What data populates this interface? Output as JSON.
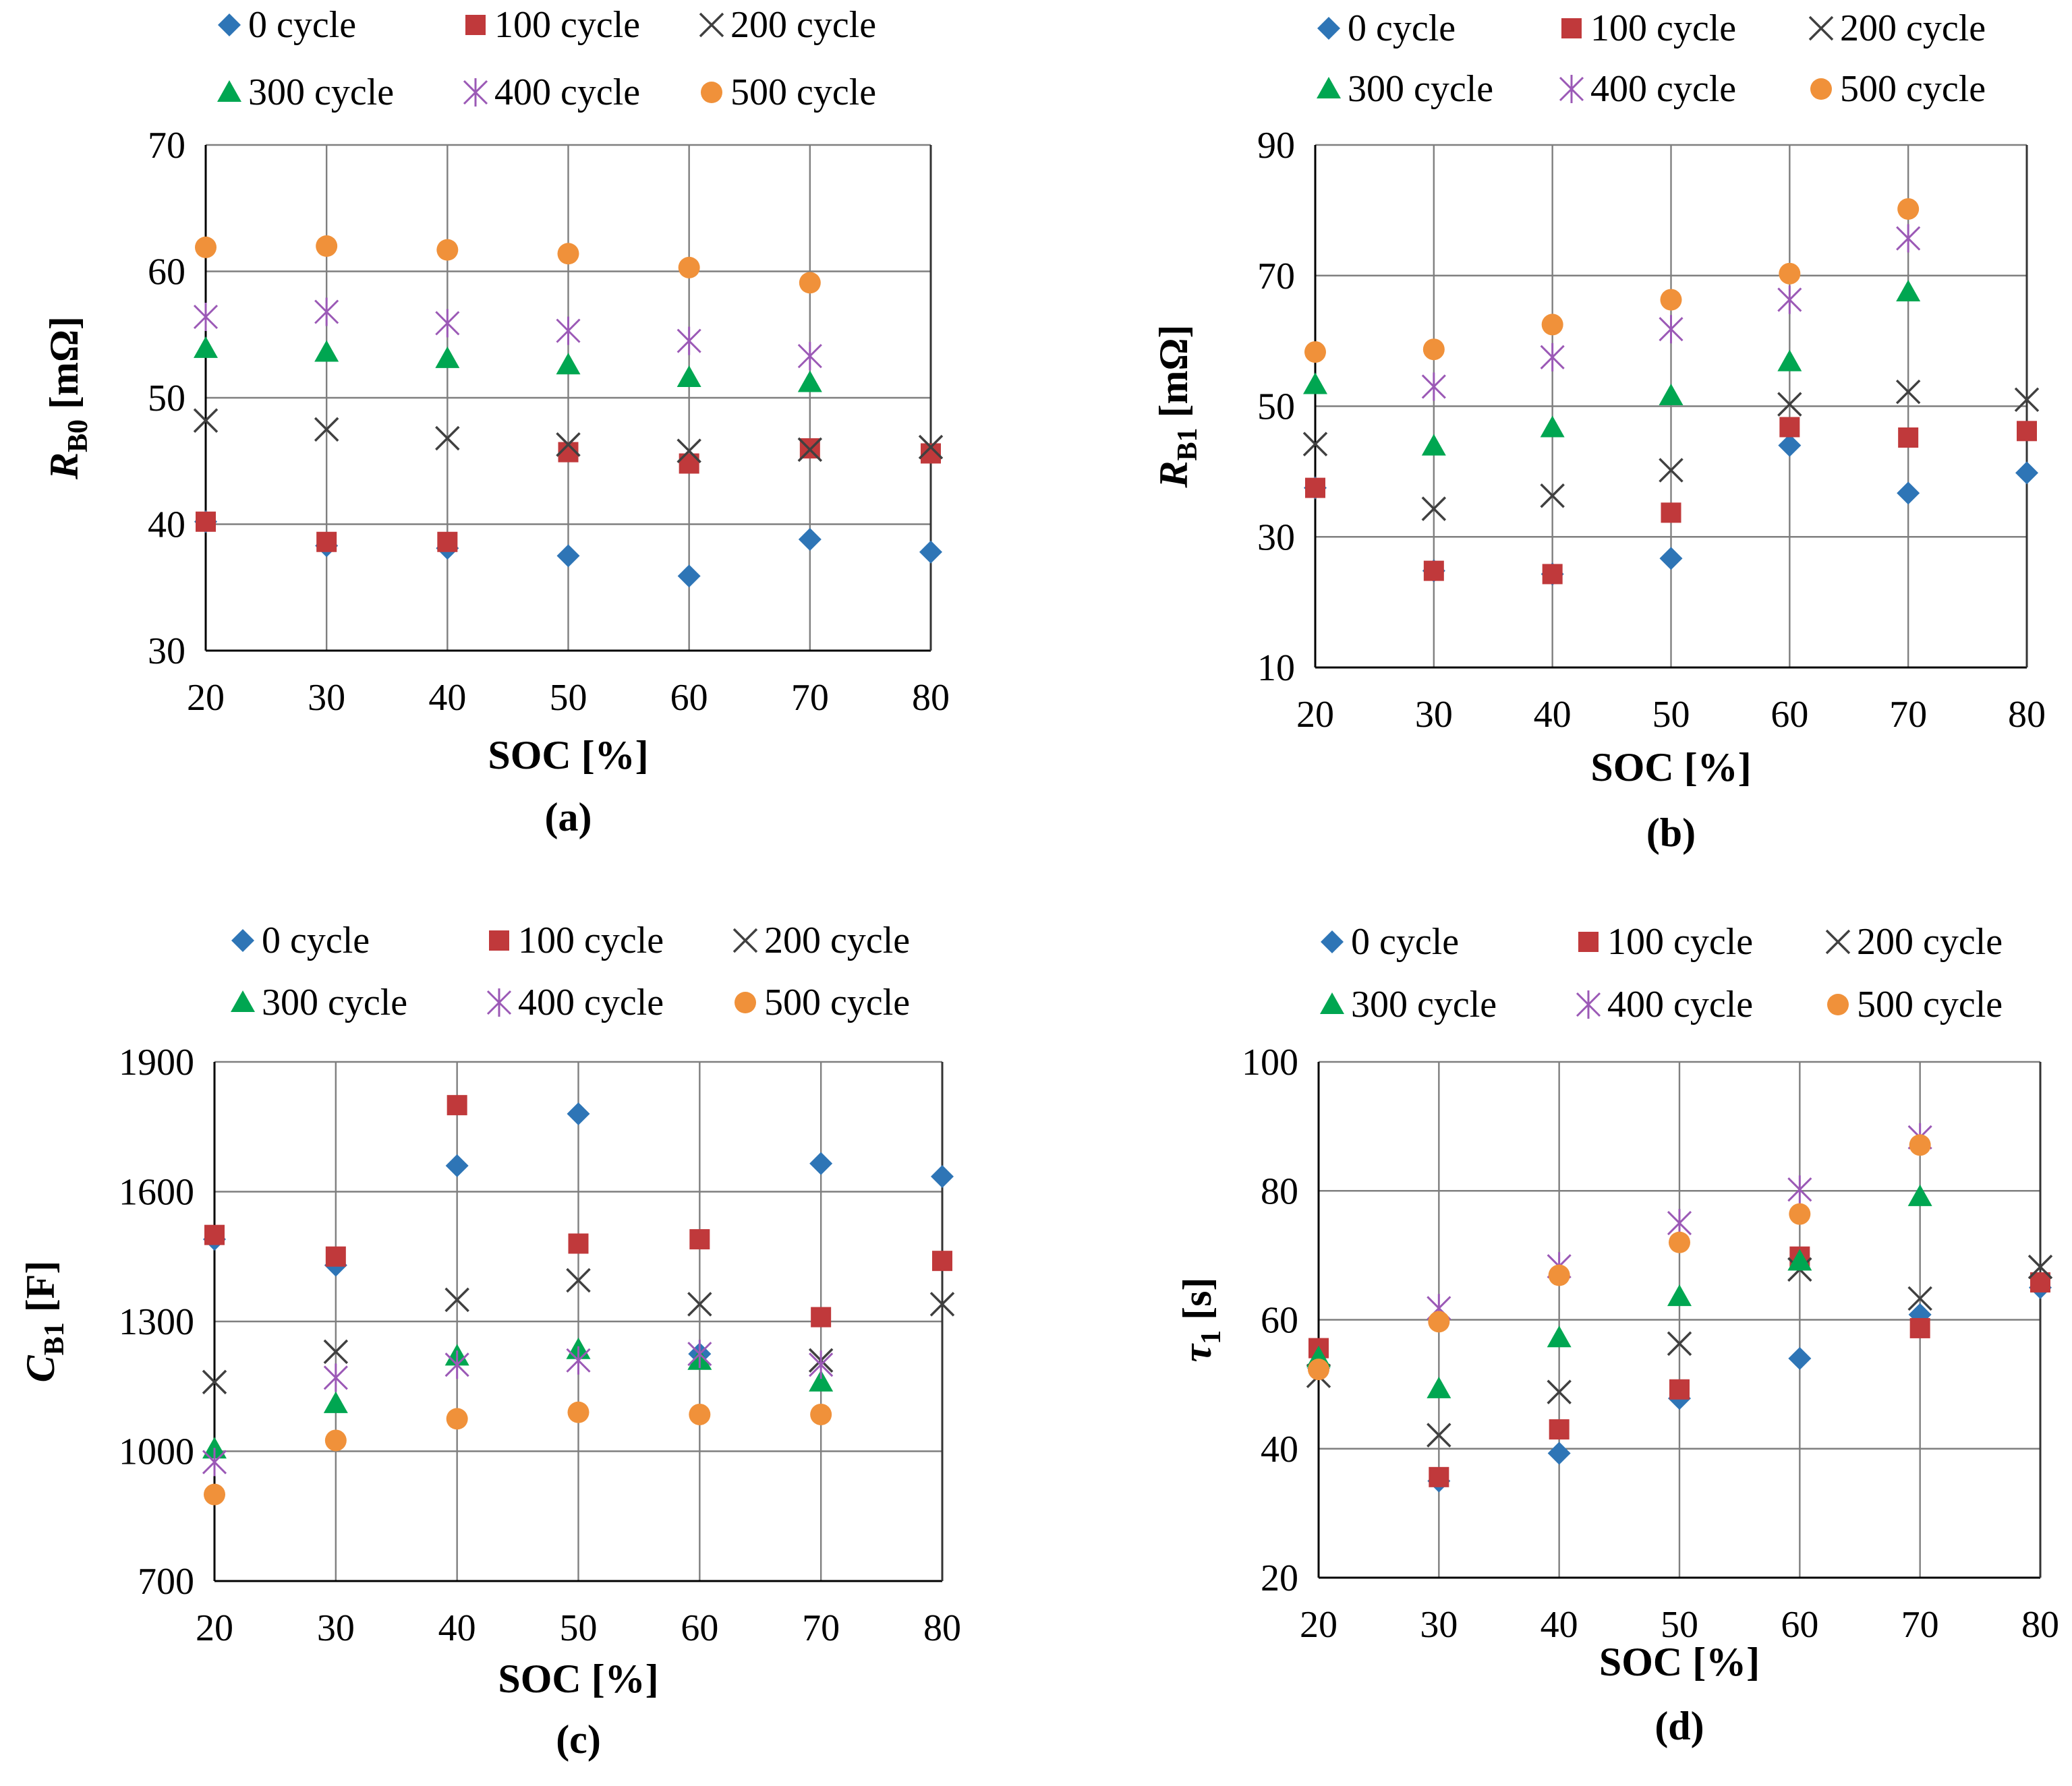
{
  "chart_data": [
    {
      "type": "scatter",
      "panel_label": "(a)",
      "xlabel": "SOC [%]",
      "ylabel": {
        "main": "R",
        "sub": "B0",
        "unit": " [mΩ]"
      },
      "categories": [
        20,
        30,
        40,
        50,
        60,
        70,
        80
      ],
      "ylim": [
        30,
        70
      ],
      "yticks": [
        30,
        40,
        50,
        60,
        70
      ],
      "grid": true,
      "legend_position": "top",
      "series": [
        {
          "name": "0 cycle",
          "values": [
            40.2,
            38.3,
            38.1,
            37.5,
            35.9,
            38.8,
            37.8
          ]
        },
        {
          "name": "100 cycle",
          "values": [
            40.2,
            38.6,
            38.6,
            45.7,
            44.8,
            46.0,
            45.6
          ]
        },
        {
          "name": "200 cycle",
          "values": [
            48.2,
            47.5,
            46.8,
            46.3,
            45.8,
            45.9,
            46.1
          ]
        },
        {
          "name": "300 cycle",
          "values": [
            53.9,
            53.6,
            53.1,
            52.6,
            51.6,
            51.2,
            null
          ]
        },
        {
          "name": "400 cycle",
          "values": [
            56.4,
            56.8,
            55.9,
            55.3,
            54.5,
            53.3,
            null
          ]
        },
        {
          "name": "500 cycle",
          "values": [
            61.9,
            62.0,
            61.7,
            61.4,
            60.3,
            59.1,
            null
          ]
        }
      ]
    },
    {
      "type": "scatter",
      "panel_label": "(b)",
      "xlabel": "SOC [%]",
      "ylabel": {
        "main": "R",
        "sub": "B1",
        "unit": " [mΩ]"
      },
      "categories": [
        20,
        30,
        40,
        50,
        60,
        70,
        80
      ],
      "ylim": [
        10,
        90
      ],
      "yticks": [
        10,
        30,
        50,
        70,
        90
      ],
      "grid": true,
      "legend_position": "top",
      "series": [
        {
          "name": "0 cycle",
          "values": [
            37.5,
            24.8,
            24.3,
            26.7,
            44.0,
            36.7,
            39.8
          ]
        },
        {
          "name": "100 cycle",
          "values": [
            37.5,
            24.8,
            24.3,
            33.7,
            46.8,
            45.2,
            46.2
          ]
        },
        {
          "name": "200 cycle",
          "values": [
            44.2,
            34.3,
            36.3,
            40.2,
            50.3,
            52.2,
            51.0
          ]
        },
        {
          "name": "300 cycle",
          "values": [
            53.3,
            43.9,
            46.7,
            51.6,
            56.8,
            67.5,
            null
          ]
        },
        {
          "name": "400 cycle",
          "values": [
            null,
            53.0,
            57.5,
            61.8,
            66.3,
            75.7,
            null
          ]
        },
        {
          "name": "500 cycle",
          "values": [
            58.3,
            58.7,
            62.5,
            66.3,
            70.3,
            80.2,
            null
          ]
        }
      ]
    },
    {
      "type": "scatter",
      "panel_label": "(c)",
      "xlabel": "SOC [%]",
      "ylabel": {
        "main": "C",
        "sub": "B1",
        "unit": " [F]"
      },
      "categories": [
        20,
        30,
        40,
        50,
        60,
        70,
        80
      ],
      "ylim": [
        700,
        1900
      ],
      "yticks": [
        700,
        1000,
        1300,
        1600,
        1900
      ],
      "grid": true,
      "legend_position": "top",
      "series": [
        {
          "name": "0 cycle",
          "values": [
            1490,
            1430,
            1660,
            1780,
            1225,
            1665,
            1635
          ]
        },
        {
          "name": "100 cycle",
          "values": [
            1500,
            1450,
            1800,
            1480,
            1490,
            1310,
            1440
          ]
        },
        {
          "name": "200 cycle",
          "values": [
            1160,
            1230,
            1350,
            1395,
            1340,
            1210,
            1340
          ]
        },
        {
          "name": "300 cycle",
          "values": [
            1005,
            1110,
            1220,
            1235,
            1210,
            1160,
            null
          ]
        },
        {
          "name": "400 cycle",
          "values": [
            975,
            1170,
            1200,
            1210,
            1225,
            1200,
            null
          ]
        },
        {
          "name": "500 cycle",
          "values": [
            900,
            1025,
            1075,
            1090,
            1085,
            1085,
            null
          ]
        }
      ]
    },
    {
      "type": "scatter",
      "panel_label": "(d)",
      "xlabel": "SOC [%]",
      "ylabel": {
        "main": "τ",
        "sub": "1",
        "unit": " [s]"
      },
      "categories": [
        20,
        30,
        40,
        50,
        60,
        70,
        80
      ],
      "ylim": [
        20,
        100
      ],
      "yticks": [
        20,
        40,
        60,
        80,
        100
      ],
      "grid": true,
      "legend_position": "top",
      "series": [
        {
          "name": "0 cycle",
          "values": [
            52.5,
            35.0,
            39.3,
            47.8,
            54.0,
            60.8,
            65.0
          ]
        },
        {
          "name": "100 cycle",
          "values": [
            55.6,
            35.6,
            43.0,
            49.2,
            69.8,
            58.7,
            65.8
          ]
        },
        {
          "name": "200 cycle",
          "values": [
            51.3,
            42.1,
            48.8,
            56.3,
            67.8,
            63.3,
            68.2
          ]
        },
        {
          "name": "300 cycle",
          "values": [
            54.1,
            49.3,
            57.2,
            63.6,
            69.1,
            79.1,
            null
          ]
        },
        {
          "name": "400 cycle",
          "values": [
            null,
            61.8,
            68.3,
            75.0,
            80.2,
            88.3,
            null
          ]
        },
        {
          "name": "500 cycle",
          "values": [
            52.3,
            59.7,
            66.9,
            72.0,
            76.4,
            87.1,
            null
          ]
        }
      ]
    }
  ],
  "series_styles": [
    {
      "name": "0 cycle",
      "marker": "diamond",
      "color": "#2e75b6"
    },
    {
      "name": "100 cycle",
      "marker": "square",
      "color": "#c0393b"
    },
    {
      "name": "200 cycle",
      "marker": "x",
      "color": "#404040"
    },
    {
      "name": "300 cycle",
      "marker": "triangle",
      "color": "#00a651"
    },
    {
      "name": "400 cycle",
      "marker": "star",
      "color": "#9b59b6"
    },
    {
      "name": "500 cycle",
      "marker": "circle",
      "color": "#f0913a"
    }
  ]
}
